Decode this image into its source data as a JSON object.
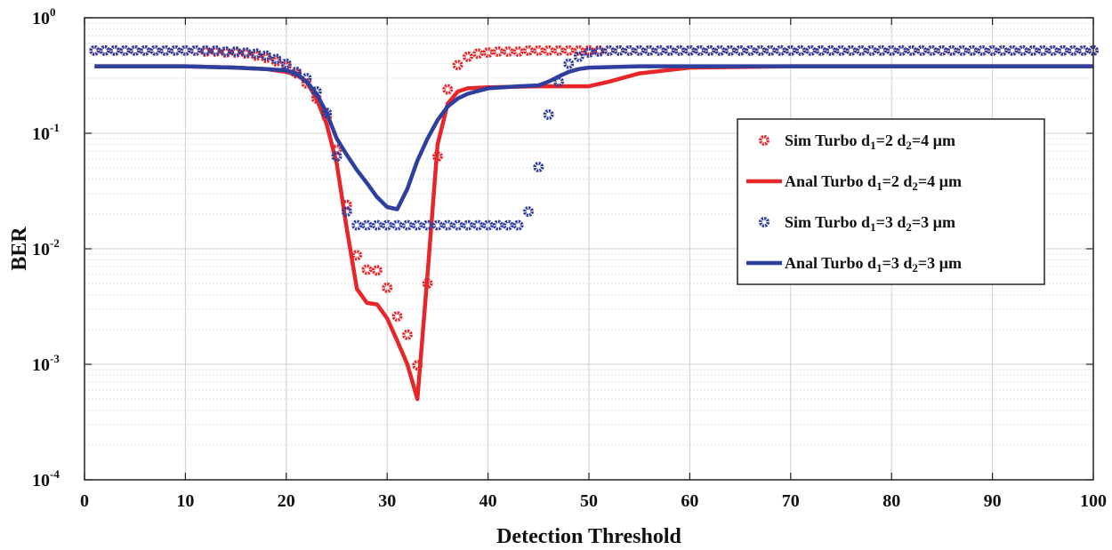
{
  "chart_data": {
    "type": "line",
    "title": "",
    "xlabel": "Detection Threshold",
    "ylabel": "BER",
    "xlim": [
      0,
      100
    ],
    "ylim": [
      0.0001,
      1
    ],
    "yscale": "log",
    "grid": true,
    "legend_position": "right",
    "x_ticks": [
      0,
      10,
      20,
      30,
      40,
      50,
      60,
      70,
      80,
      90,
      100
    ],
    "x_tick_labels": [
      "0",
      "10",
      "20",
      "30",
      "40",
      "50",
      "60",
      "70",
      "80",
      "90",
      "100"
    ],
    "y_ticks": [
      {
        "value": 1,
        "base": "10",
        "exp": "0"
      },
      {
        "value": 0.1,
        "base": "10",
        "exp": "-1"
      },
      {
        "value": 0.01,
        "base": "10",
        "exp": "-2"
      },
      {
        "value": 0.001,
        "base": "10",
        "exp": "-3"
      },
      {
        "value": 0.0001,
        "base": "10",
        "exp": "-4"
      }
    ],
    "series": [
      {
        "name": "Sim Turbo d1=2 d2=4 µm",
        "legend": {
          "pre": "Sim Turbo d",
          "s1": "1",
          "mid": "=2 d",
          "s2": "2",
          "post": "=4 µm"
        },
        "style": "markers",
        "color": "#e8262a",
        "x": [
          1,
          2,
          3,
          4,
          5,
          6,
          7,
          8,
          9,
          10,
          11,
          12,
          13,
          14,
          15,
          16,
          17,
          18,
          19,
          20,
          21,
          22,
          23,
          24,
          25,
          26,
          27,
          28,
          29,
          30,
          31,
          32,
          33,
          34,
          35,
          36,
          37,
          38,
          39,
          40,
          41,
          42,
          43,
          44,
          45,
          46,
          47,
          48,
          49,
          50,
          51,
          52,
          53,
          54,
          55,
          56,
          57,
          58,
          59,
          60,
          61,
          62,
          63,
          64,
          65,
          66,
          67,
          68,
          69,
          70,
          71,
          72,
          73,
          74,
          75,
          76,
          77,
          78,
          79,
          80,
          81,
          82,
          83,
          84,
          85,
          86,
          87,
          88,
          89,
          90,
          91,
          92,
          93,
          94,
          95,
          96,
          97,
          98,
          99,
          100
        ],
        "y": [
          0.52,
          0.52,
          0.52,
          0.52,
          0.52,
          0.52,
          0.52,
          0.52,
          0.52,
          0.52,
          0.52,
          0.51,
          0.51,
          0.5,
          0.5,
          0.49,
          0.47,
          0.45,
          0.42,
          0.38,
          0.33,
          0.27,
          0.2,
          0.14,
          0.072,
          0.024,
          0.0088,
          0.0066,
          0.0065,
          0.0046,
          0.0026,
          0.0018,
          0.00098,
          0.005,
          0.063,
          0.24,
          0.39,
          0.46,
          0.49,
          0.5,
          0.51,
          0.51,
          0.51,
          0.52,
          0.52,
          0.52,
          0.52,
          0.52,
          0.52,
          0.52,
          0.52,
          0.52,
          0.52,
          0.52,
          0.52,
          0.52,
          0.52,
          0.52,
          0.52,
          0.52,
          0.52,
          0.52,
          0.52,
          0.52,
          0.52,
          0.52,
          0.52,
          0.52,
          0.52,
          0.52,
          0.52,
          0.52,
          0.52,
          0.52,
          0.52,
          0.52,
          0.52,
          0.52,
          0.52,
          0.52,
          0.52,
          0.52,
          0.52,
          0.52,
          0.52,
          0.52,
          0.52,
          0.52,
          0.52,
          0.52,
          0.52,
          0.52,
          0.52,
          0.52,
          0.52,
          0.52,
          0.52,
          0.52,
          0.52,
          0.52
        ]
      },
      {
        "name": "Anal Turbo d1=2 d2=4 µm",
        "legend": {
          "pre": "Anal Turbo d",
          "s1": "1",
          "mid": "=2 d",
          "s2": "2",
          "post": "=4 µm"
        },
        "style": "line",
        "color": "#e8262a",
        "x": [
          1,
          10,
          15,
          18,
          20,
          21,
          22,
          23,
          24,
          25,
          26,
          27,
          28,
          29,
          30,
          31,
          32,
          33,
          34,
          35,
          36,
          37,
          38,
          40,
          45,
          48,
          50,
          52,
          55,
          60,
          70,
          80,
          90,
          100
        ],
        "y": [
          0.38,
          0.38,
          0.37,
          0.36,
          0.34,
          0.32,
          0.28,
          0.2,
          0.12,
          0.055,
          0.015,
          0.0045,
          0.0034,
          0.0033,
          0.0025,
          0.0016,
          0.001,
          0.0005,
          0.006,
          0.08,
          0.18,
          0.23,
          0.245,
          0.25,
          0.255,
          0.255,
          0.255,
          0.28,
          0.33,
          0.37,
          0.38,
          0.38,
          0.38,
          0.38
        ]
      },
      {
        "name": "Sim Turbo d1=3 d2=3 µm",
        "legend": {
          "pre": "Sim Turbo d",
          "s1": "1",
          "mid": "=3 d",
          "s2": "2",
          "post": "=3 µm"
        },
        "style": "markers",
        "color": "#2e3f9e",
        "x": [
          1,
          2,
          3,
          4,
          5,
          6,
          7,
          8,
          9,
          10,
          11,
          12,
          13,
          14,
          15,
          16,
          17,
          18,
          19,
          20,
          21,
          22,
          23,
          24,
          25,
          26,
          27,
          28,
          29,
          30,
          31,
          32,
          33,
          34,
          35,
          36,
          37,
          38,
          39,
          40,
          41,
          42,
          43,
          44,
          45,
          46,
          47,
          48,
          49,
          50,
          51,
          52,
          53,
          54,
          55,
          56,
          57,
          58,
          59,
          60,
          61,
          62,
          63,
          64,
          65,
          66,
          67,
          68,
          69,
          70,
          71,
          72,
          73,
          74,
          75,
          76,
          77,
          78,
          79,
          80,
          81,
          82,
          83,
          84,
          85,
          86,
          87,
          88,
          89,
          90,
          91,
          92,
          93,
          94,
          95,
          96,
          97,
          98,
          99,
          100
        ],
        "y": [
          0.52,
          0.52,
          0.52,
          0.52,
          0.52,
          0.52,
          0.52,
          0.52,
          0.52,
          0.52,
          0.52,
          0.52,
          0.52,
          0.51,
          0.51,
          0.5,
          0.49,
          0.47,
          0.44,
          0.4,
          0.34,
          0.3,
          0.23,
          0.15,
          0.063,
          0.021,
          0.016,
          0.016,
          0.016,
          0.016,
          0.016,
          0.016,
          0.016,
          0.016,
          0.016,
          0.016,
          0.016,
          0.016,
          0.016,
          0.016,
          0.016,
          0.016,
          0.016,
          0.021,
          0.051,
          0.145,
          0.28,
          0.4,
          0.46,
          0.5,
          0.51,
          0.52,
          0.52,
          0.52,
          0.52,
          0.52,
          0.52,
          0.52,
          0.52,
          0.52,
          0.52,
          0.52,
          0.52,
          0.52,
          0.52,
          0.52,
          0.52,
          0.52,
          0.52,
          0.52,
          0.52,
          0.52,
          0.52,
          0.52,
          0.52,
          0.52,
          0.52,
          0.52,
          0.52,
          0.52,
          0.52,
          0.52,
          0.52,
          0.52,
          0.52,
          0.52,
          0.52,
          0.52,
          0.52,
          0.52,
          0.52,
          0.52,
          0.52,
          0.52,
          0.52,
          0.52,
          0.52,
          0.52,
          0.52,
          0.52
        ]
      },
      {
        "name": "Anal Turbo d1=3 d2=3 µm",
        "legend": {
          "pre": "Anal Turbo d",
          "s1": "1",
          "mid": "=3 d",
          "s2": "2",
          "post": "=3 µm"
        },
        "style": "line",
        "color": "#2e3f9e",
        "x": [
          1,
          10,
          15,
          18,
          20,
          21,
          22,
          23,
          24,
          25,
          26,
          27,
          28,
          29,
          30,
          31,
          32,
          33,
          34,
          35,
          36,
          37,
          38,
          40,
          43,
          45,
          46,
          47,
          48,
          49,
          50,
          55,
          60,
          70,
          80,
          90,
          100
        ],
        "y": [
          0.38,
          0.38,
          0.37,
          0.36,
          0.35,
          0.33,
          0.28,
          0.22,
          0.15,
          0.09,
          0.065,
          0.048,
          0.037,
          0.028,
          0.023,
          0.022,
          0.033,
          0.058,
          0.09,
          0.13,
          0.17,
          0.2,
          0.22,
          0.245,
          0.255,
          0.26,
          0.28,
          0.31,
          0.34,
          0.36,
          0.37,
          0.38,
          0.38,
          0.38,
          0.38,
          0.38,
          0.38
        ]
      }
    ]
  }
}
